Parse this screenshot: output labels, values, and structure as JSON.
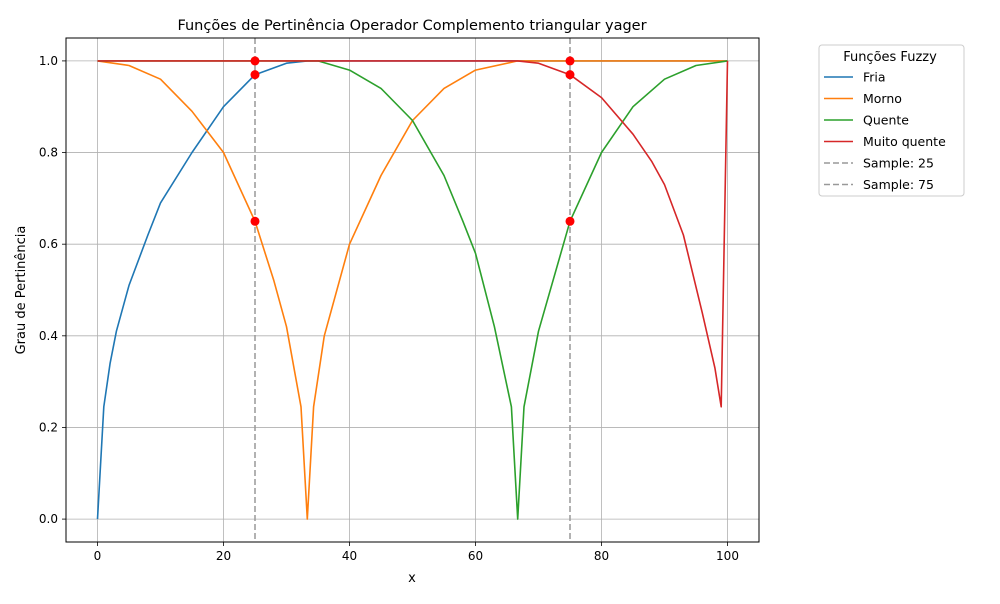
{
  "chart_data": {
    "type": "line",
    "title": "Funções de Pertinência Operador Complemento triangular yager",
    "xlabel": "x",
    "ylabel": "Grau de Pertinência",
    "xlim": [
      -5,
      105
    ],
    "ylim": [
      -0.05,
      1.05
    ],
    "xticks": [
      0,
      20,
      40,
      60,
      80,
      100
    ],
    "yticks": [
      0.0,
      0.2,
      0.4,
      0.6,
      0.8,
      1.0
    ],
    "xtick_labels": [
      "0",
      "20",
      "40",
      "60",
      "80",
      "100"
    ],
    "ytick_labels": [
      "0.0",
      "0.2",
      "0.4",
      "0.6",
      "0.8",
      "1.0"
    ],
    "grid": true,
    "legend": {
      "title": "Funções Fuzzy",
      "placement": "outside-top-right",
      "entries": [
        "Fria",
        "Morno",
        "Quente",
        "Muito quente",
        "Sample: 25",
        "Sample: 75"
      ]
    },
    "series": [
      {
        "name": "Fria",
        "color": "#1f77b4",
        "x": [
          0,
          1,
          2,
          3,
          5,
          8,
          10,
          15,
          20,
          25,
          30,
          33.3,
          40,
          50,
          60,
          66.7,
          70,
          80,
          90,
          99,
          100
        ],
        "y": [
          0.0,
          0.245,
          0.34,
          0.41,
          0.51,
          0.62,
          0.69,
          0.8,
          0.9,
          0.97,
          0.995,
          1.0,
          1.0,
          1.0,
          1.0,
          1.0,
          1.0,
          1.0,
          1.0,
          1.0,
          1.0
        ]
      },
      {
        "name": "Morno",
        "color": "#ff7f0e",
        "x": [
          0,
          5,
          10,
          15,
          20,
          25,
          28,
          30,
          32.3,
          33.3,
          34.3,
          36,
          40,
          45,
          50,
          55,
          60,
          66.7,
          70,
          80,
          90,
          100
        ],
        "y": [
          1.0,
          0.99,
          0.96,
          0.89,
          0.8,
          0.65,
          0.52,
          0.42,
          0.245,
          0.0,
          0.245,
          0.4,
          0.6,
          0.75,
          0.87,
          0.94,
          0.98,
          1.0,
          1.0,
          1.0,
          1.0,
          1.0
        ]
      },
      {
        "name": "Quente",
        "color": "#2ca02c",
        "x": [
          0,
          10,
          20,
          30,
          33.3,
          35,
          40,
          45,
          50,
          55,
          58,
          60,
          63,
          65.7,
          66.7,
          67.7,
          70,
          75,
          80,
          85,
          90,
          95,
          100
        ],
        "y": [
          1.0,
          1.0,
          1.0,
          1.0,
          1.0,
          1.0,
          0.98,
          0.94,
          0.87,
          0.75,
          0.65,
          0.58,
          0.42,
          0.245,
          0.0,
          0.245,
          0.41,
          0.65,
          0.8,
          0.9,
          0.96,
          0.99,
          1.0
        ]
      },
      {
        "name": "Muito quente",
        "color": "#d62728",
        "x": [
          0,
          20,
          40,
          60,
          66.7,
          70,
          75,
          80,
          85,
          88,
          90,
          93,
          96,
          98,
          99,
          100
        ],
        "y": [
          1.0,
          1.0,
          1.0,
          1.0,
          1.0,
          0.995,
          0.97,
          0.92,
          0.84,
          0.78,
          0.73,
          0.62,
          0.45,
          0.33,
          0.245,
          1.0
        ]
      }
    ],
    "reference_lines": [
      {
        "name": "Sample: 25",
        "x": 25,
        "color": "#999999",
        "style": "dashed"
      },
      {
        "name": "Sample: 75",
        "x": 75,
        "color": "#999999",
        "style": "dashed"
      }
    ],
    "sample_points": [
      {
        "x": 25,
        "y": 1.0
      },
      {
        "x": 25,
        "y": 0.97
      },
      {
        "x": 25,
        "y": 0.65
      },
      {
        "x": 75,
        "y": 1.0
      },
      {
        "x": 75,
        "y": 0.97
      },
      {
        "x": 75,
        "y": 0.65
      }
    ],
    "sample_point_color": "#ff0000"
  }
}
